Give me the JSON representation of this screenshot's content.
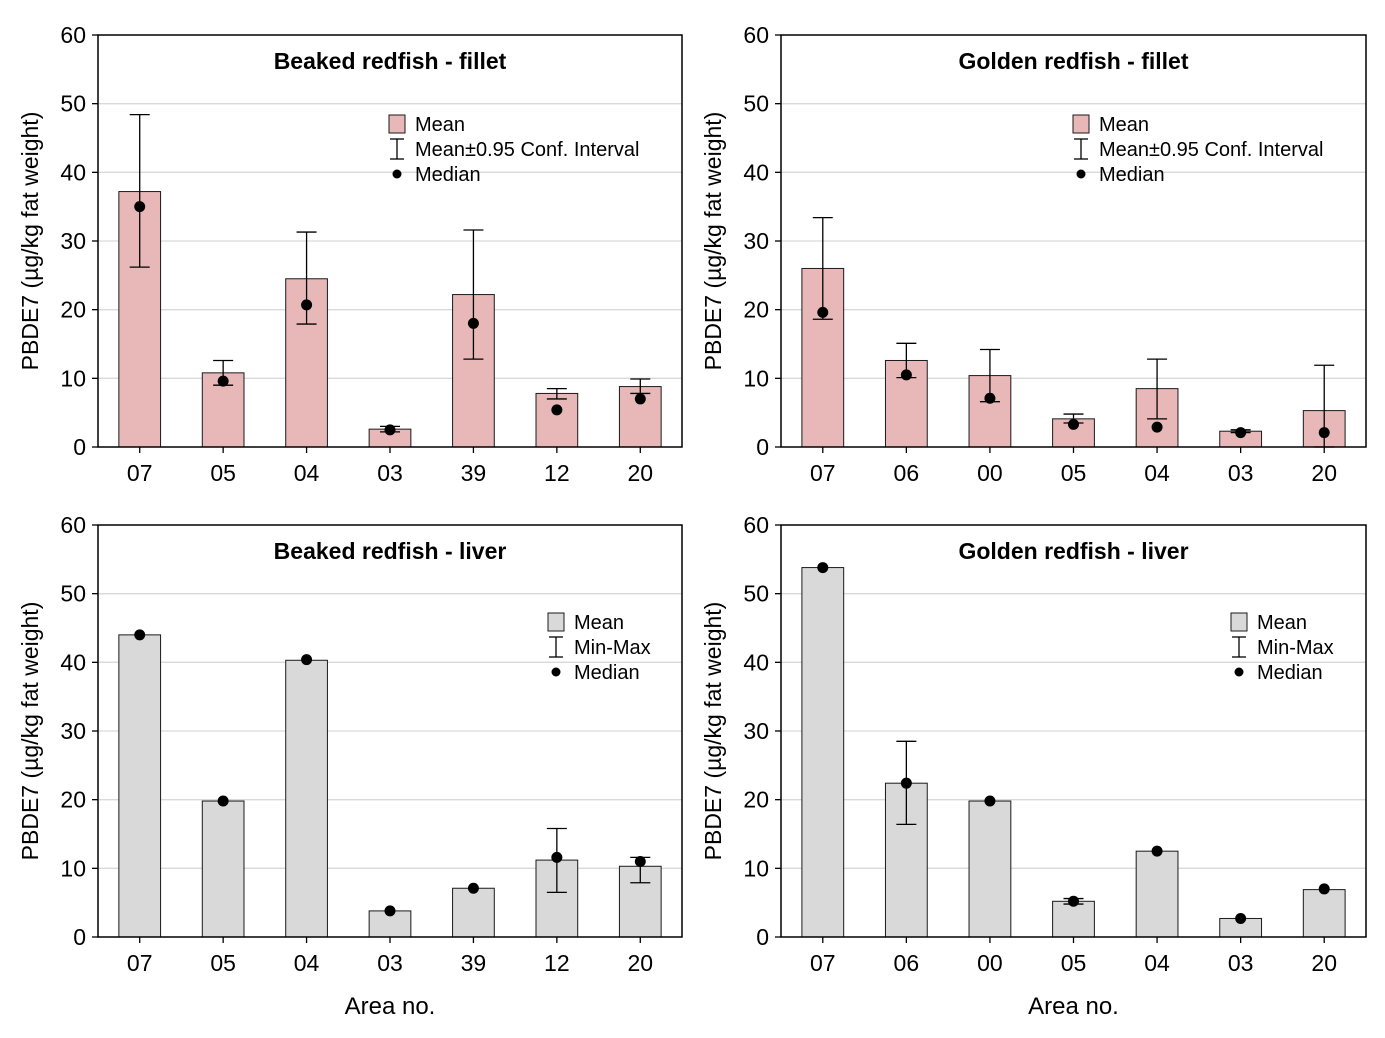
{
  "colors": {
    "fillet_bar": "#e8b8b8",
    "liver_bar": "#d9d9d9",
    "bar_stroke": "#1a1a1a",
    "grid": "#d9d9d9",
    "marker": "#000000"
  },
  "x_axis_title": "Area no.",
  "chart_data": [
    {
      "type": "bar",
      "title": "Beaked redfish - fillet",
      "ylabel": "PBDE7 (µg/kg fat weight)",
      "xlabel": "",
      "ylim": [
        0,
        60
      ],
      "yticks": [
        "0",
        "10",
        "20",
        "30",
        "40",
        "50",
        "60"
      ],
      "grid": true,
      "legend_position": "top-right",
      "legend": [
        "Mean",
        "Mean±0.95 Conf. Interval",
        "Median"
      ],
      "bar_color": "#e8b8b8",
      "categories": [
        "07",
        "05",
        "04",
        "03",
        "39",
        "12",
        "20"
      ],
      "series": [
        {
          "name": "Mean",
          "values": [
            37.2,
            10.8,
            24.5,
            2.6,
            22.2,
            7.8,
            8.8
          ]
        },
        {
          "name": "Median",
          "values": [
            35.0,
            9.6,
            20.7,
            2.5,
            18.0,
            5.4,
            7.0
          ]
        }
      ],
      "error_low": [
        26.2,
        9.0,
        17.9,
        2.2,
        12.8,
        7.0,
        7.8
      ],
      "error_high": [
        48.4,
        12.6,
        31.3,
        3.0,
        31.6,
        8.5,
        9.9
      ]
    },
    {
      "type": "bar",
      "title": "Golden redfish - fillet",
      "ylabel": "PBDE7 (µg/kg fat weight)",
      "xlabel": "",
      "ylim": [
        0,
        60
      ],
      "yticks": [
        "0",
        "10",
        "20",
        "30",
        "40",
        "50",
        "60"
      ],
      "grid": true,
      "legend_position": "top-right",
      "legend": [
        "Mean",
        "Mean±0.95 Conf. Interval",
        "Median"
      ],
      "bar_color": "#e8b8b8",
      "categories": [
        "07",
        "06",
        "00",
        "05",
        "04",
        "03",
        "20"
      ],
      "series": [
        {
          "name": "Mean",
          "values": [
            26.0,
            12.6,
            10.4,
            4.1,
            8.5,
            2.3,
            5.3
          ]
        },
        {
          "name": "Median",
          "values": [
            19.6,
            10.5,
            7.1,
            3.3,
            2.9,
            2.1,
            2.1
          ]
        }
      ],
      "error_low": [
        18.6,
        10.1,
        6.6,
        3.5,
        4.1,
        2.1,
        0.0
      ],
      "error_high": [
        33.4,
        15.1,
        14.2,
        4.8,
        12.8,
        2.5,
        11.9
      ]
    },
    {
      "type": "bar",
      "title": "Beaked redfish - liver",
      "ylabel": "PBDE7 (µg/kg fat weight)",
      "xlabel": "",
      "ylim": [
        0,
        60
      ],
      "yticks": [
        "0",
        "10",
        "20",
        "30",
        "40",
        "50",
        "60"
      ],
      "grid": true,
      "legend_position": "right",
      "legend": [
        "Mean",
        "Min-Max",
        "Median"
      ],
      "bar_color": "#d9d9d9",
      "categories": [
        "07",
        "05",
        "04",
        "03",
        "39",
        "12",
        "20"
      ],
      "series": [
        {
          "name": "Mean",
          "values": [
            44.0,
            19.8,
            40.3,
            3.8,
            7.1,
            11.2,
            10.3
          ]
        },
        {
          "name": "Median",
          "values": [
            44.0,
            19.8,
            40.4,
            3.8,
            7.1,
            11.6,
            11.0
          ]
        }
      ],
      "error_low": [
        null,
        null,
        null,
        null,
        null,
        6.5,
        7.9
      ],
      "error_high": [
        null,
        null,
        null,
        null,
        null,
        15.8,
        11.6
      ]
    },
    {
      "type": "bar",
      "title": "Golden redfish - liver",
      "ylabel": "PBDE7 (µg/kg fat weight)",
      "xlabel": "",
      "ylim": [
        0,
        60
      ],
      "yticks": [
        "0",
        "10",
        "20",
        "30",
        "40",
        "50",
        "60"
      ],
      "grid": true,
      "legend_position": "right",
      "legend": [
        "Mean",
        "Min-Max",
        "Median"
      ],
      "bar_color": "#d9d9d9",
      "categories": [
        "07",
        "06",
        "00",
        "05",
        "04",
        "03",
        "20"
      ],
      "series": [
        {
          "name": "Mean",
          "values": [
            53.8,
            22.4,
            19.8,
            5.2,
            12.5,
            2.7,
            6.9
          ]
        },
        {
          "name": "Median",
          "values": [
            53.8,
            22.4,
            19.8,
            5.2,
            12.5,
            2.7,
            7.0
          ]
        }
      ],
      "error_low": [
        null,
        16.4,
        null,
        4.8,
        null,
        null,
        null
      ],
      "error_high": [
        null,
        28.5,
        null,
        5.6,
        null,
        null,
        null
      ]
    }
  ]
}
